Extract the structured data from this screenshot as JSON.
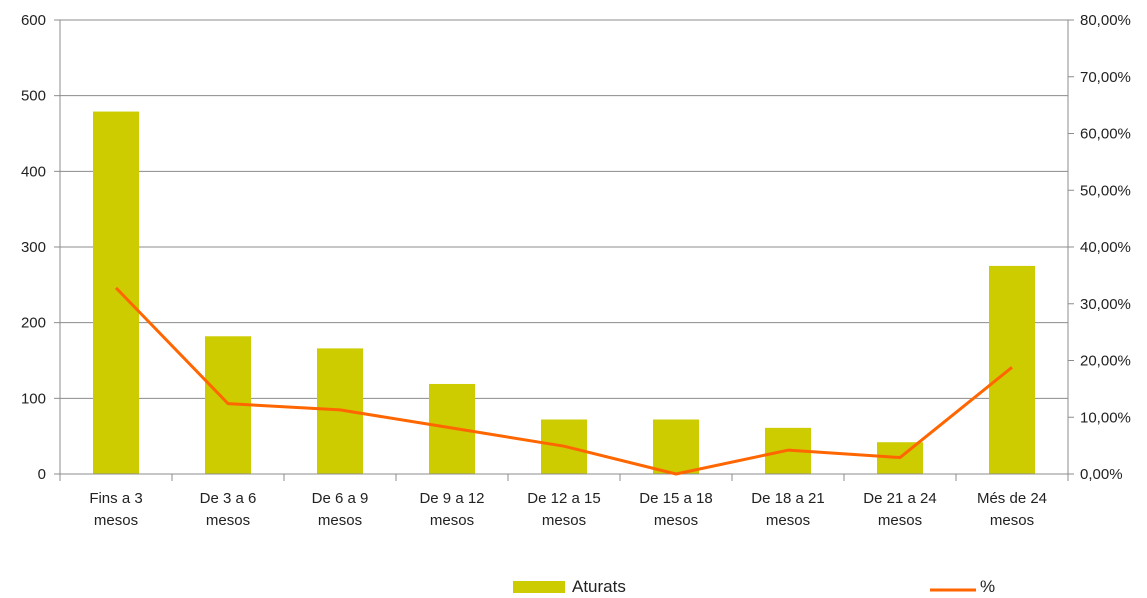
{
  "chart_data": {
    "type": "bar",
    "categories": [
      [
        "Fins a 3",
        "mesos"
      ],
      [
        "De 3 a 6",
        "mesos"
      ],
      [
        "De 6 a 9",
        "mesos"
      ],
      [
        "De 9 a 12",
        "mesos"
      ],
      [
        "De 12 a 15",
        "mesos"
      ],
      [
        "De 15 a 18",
        "mesos"
      ],
      [
        "De 18 a 21",
        "mesos"
      ],
      [
        "De 21 a 24",
        "mesos"
      ],
      [
        "Més de 24",
        "mesos"
      ]
    ],
    "series": [
      {
        "name": "Aturats",
        "type": "bar",
        "axis": "left",
        "color": "#cccc00",
        "values": [
          479,
          182,
          166,
          119,
          72,
          72,
          61,
          42,
          275
        ]
      },
      {
        "name": "%",
        "type": "line",
        "axis": "right",
        "color": "#ff6600",
        "values": [
          32.8,
          12.4,
          11.3,
          8.1,
          4.9,
          0.0,
          4.2,
          2.9,
          18.8
        ]
      }
    ],
    "y_left": {
      "min": 0,
      "max": 600,
      "step": 100,
      "tick_labels": [
        "0",
        "100",
        "200",
        "300",
        "400",
        "500",
        "600"
      ]
    },
    "y_right": {
      "min": 0,
      "max": 80,
      "step": 10,
      "tick_labels": [
        "0,00%",
        "10,00%",
        "20,00%",
        "30,00%",
        "40,00%",
        "50,00%",
        "60,00%",
        "70,00%",
        "80,00%"
      ]
    },
    "grid": true,
    "legend": {
      "position": "bottom",
      "items": [
        "Aturats",
        "%"
      ]
    }
  }
}
